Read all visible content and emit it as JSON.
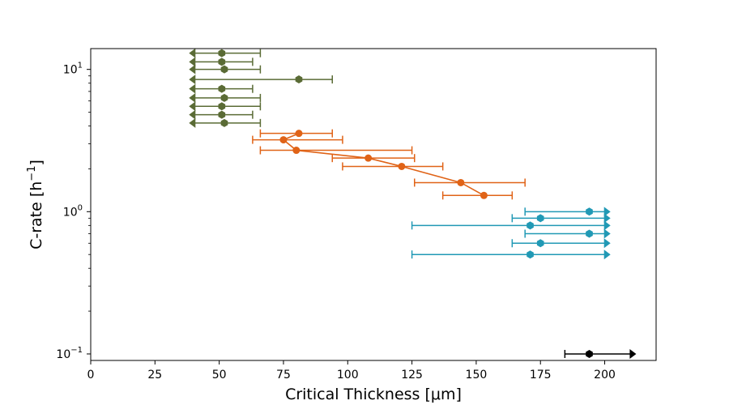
{
  "chart_data": {
    "type": "scatter",
    "title": "",
    "xlabel": "Critical Thickness [μm]",
    "ylabel_main": "C-rate [h",
    "ylabel_sup": "−1",
    "ylabel_end": "]",
    "xlim": [
      0,
      220
    ],
    "ylim": [
      0.09,
      14
    ],
    "yscale": "log",
    "grid": false,
    "xticks": [
      0,
      25,
      50,
      75,
      100,
      125,
      150,
      175,
      200
    ],
    "yticks": [
      {
        "value": 0.1,
        "base": "10",
        "exp": "−1"
      },
      {
        "value": 1,
        "base": "10",
        "exp": "0"
      },
      {
        "value": 10,
        "base": "10",
        "exp": "1"
      }
    ],
    "series": [
      {
        "color": "#5a6b35",
        "connect": false,
        "marker": "hexagon",
        "points": [
          {
            "x": 51,
            "y": 13.0,
            "xerr_low": 39.5,
            "xerr_high": 66,
            "arrow_left": true,
            "cap_right": true
          },
          {
            "x": 51,
            "y": 11.3,
            "xerr_low": 39.5,
            "xerr_high": 63,
            "arrow_left": true,
            "cap_right": true
          },
          {
            "x": 52,
            "y": 10.0,
            "xerr_low": 39.5,
            "xerr_high": 66,
            "arrow_left": true,
            "cap_right": true
          },
          {
            "x": 81,
            "y": 8.5,
            "xerr_low": 39.5,
            "xerr_high": 94,
            "arrow_left": true,
            "cap_right": true
          },
          {
            "x": 51,
            "y": 7.3,
            "xerr_low": 39.5,
            "xerr_high": 63,
            "arrow_left": true,
            "cap_right": true
          },
          {
            "x": 52,
            "y": 6.3,
            "xerr_low": 39.5,
            "xerr_high": 66,
            "arrow_left": true,
            "cap_right": true
          },
          {
            "x": 51,
            "y": 5.5,
            "xerr_low": 39.5,
            "xerr_high": 66,
            "arrow_left": true,
            "cap_right": true
          },
          {
            "x": 51,
            "y": 4.8,
            "xerr_low": 39.5,
            "xerr_high": 63,
            "arrow_left": true,
            "cap_right": true
          },
          {
            "x": 52,
            "y": 4.2,
            "xerr_low": 39.5,
            "xerr_high": 66,
            "arrow_left": true,
            "cap_right": true
          }
        ]
      },
      {
        "color": "#e06317",
        "connect": true,
        "marker": "circle",
        "points": [
          {
            "x": 81,
            "y": 3.55,
            "xerr_low": 66,
            "xerr_high": 94,
            "cap_left": true,
            "cap_right": true
          },
          {
            "x": 75,
            "y": 3.2,
            "xerr_low": 63,
            "xerr_high": 98,
            "cap_left": true,
            "cap_right": true
          },
          {
            "x": 80,
            "y": 2.7,
            "xerr_low": 66,
            "xerr_high": 125,
            "cap_left": true,
            "cap_right": true
          },
          {
            "x": 108,
            "y": 2.38,
            "xerr_low": 94,
            "xerr_high": 126,
            "cap_left": true,
            "cap_right": true
          },
          {
            "x": 121,
            "y": 2.08,
            "xerr_low": 98,
            "xerr_high": 137,
            "cap_left": true,
            "cap_right": true
          },
          {
            "x": 144,
            "y": 1.6,
            "xerr_low": 126,
            "xerr_high": 169,
            "cap_left": true,
            "cap_right": true
          },
          {
            "x": 153,
            "y": 1.3,
            "xerr_low": 137,
            "xerr_high": 164,
            "cap_left": true,
            "cap_right": true
          }
        ]
      },
      {
        "color": "#2199b5",
        "connect": false,
        "marker": "hexagon",
        "points": [
          {
            "x": 194,
            "y": 1.0,
            "xerr_low": 169,
            "xerr_high": 201,
            "cap_left": true,
            "arrow_right": true
          },
          {
            "x": 175,
            "y": 0.9,
            "xerr_low": 164,
            "xerr_high": 201,
            "cap_left": true,
            "arrow_right": true
          },
          {
            "x": 171,
            "y": 0.8,
            "xerr_low": 125,
            "xerr_high": 201,
            "cap_left": true,
            "arrow_right": true
          },
          {
            "x": 194,
            "y": 0.7,
            "xerr_low": 169,
            "xerr_high": 201,
            "cap_left": true,
            "arrow_right": true
          },
          {
            "x": 175,
            "y": 0.6,
            "xerr_low": 164,
            "xerr_high": 201,
            "cap_left": true,
            "arrow_right": true
          },
          {
            "x": 171,
            "y": 0.5,
            "xerr_low": 125,
            "xerr_high": 201,
            "cap_left": true,
            "arrow_right": true
          }
        ]
      },
      {
        "color": "#000000",
        "connect": false,
        "marker": "hexagon",
        "points": [
          {
            "x": 194,
            "y": 0.1,
            "xerr_low": 184.5,
            "xerr_high": 211,
            "cap_left": true,
            "arrow_right": true
          }
        ]
      }
    ]
  }
}
